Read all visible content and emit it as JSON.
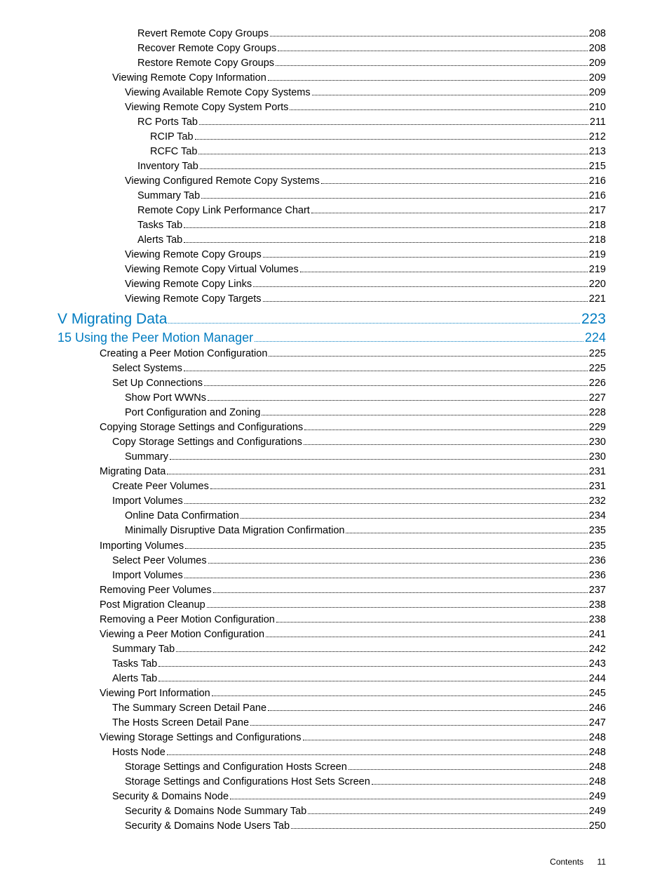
{
  "toc": [
    {
      "level": "d",
      "text": "Revert Remote Copy Groups",
      "page": "208"
    },
    {
      "level": "d",
      "text": "Recover Remote Copy Groups",
      "page": "208"
    },
    {
      "level": "d",
      "text": "Restore Remote Copy Groups",
      "page": "209"
    },
    {
      "level": "b",
      "text": "Viewing Remote Copy Information",
      "page": "209"
    },
    {
      "level": "c",
      "text": "Viewing Available Remote Copy Systems",
      "page": "209"
    },
    {
      "level": "c",
      "text": "Viewing Remote Copy System Ports",
      "page": "210"
    },
    {
      "level": "d",
      "text": "RC Ports Tab",
      "page": "211"
    },
    {
      "level": "e",
      "text": "RCIP Tab",
      "page": "212"
    },
    {
      "level": "e",
      "text": "RCFC Tab",
      "page": "213"
    },
    {
      "level": "d",
      "text": "Inventory Tab",
      "page": "215"
    },
    {
      "level": "c",
      "text": "Viewing Configured Remote Copy Systems",
      "page": "216"
    },
    {
      "level": "d",
      "text": "Summary Tab",
      "page": "216"
    },
    {
      "level": "d",
      "text": "Remote Copy Link Performance Chart",
      "page": "217"
    },
    {
      "level": "d",
      "text": "Tasks Tab",
      "page": "218"
    },
    {
      "level": "d",
      "text": "Alerts Tab",
      "page": "218"
    },
    {
      "level": "c",
      "text": "Viewing Remote Copy Groups",
      "page": "219"
    },
    {
      "level": "c",
      "text": "Viewing Remote Copy Virtual Volumes",
      "page": "219"
    },
    {
      "level": "c",
      "text": "Viewing Remote Copy Links",
      "page": "220"
    },
    {
      "level": "c",
      "text": "Viewing Remote Copy Targets",
      "page": "221"
    },
    {
      "level": "chapter",
      "text": "V Migrating Data",
      "page": "223"
    },
    {
      "level": "section",
      "text": "15 Using the Peer Motion Manager",
      "page": "224"
    },
    {
      "level": "a",
      "text": "Creating a Peer Motion Configuration",
      "page": "225"
    },
    {
      "level": "b",
      "text": "Select Systems",
      "page": "225"
    },
    {
      "level": "b",
      "text": "Set Up Connections",
      "page": "226"
    },
    {
      "level": "c",
      "text": "Show Port WWNs",
      "page": "227"
    },
    {
      "level": "c",
      "text": "Port Configuration and Zoning",
      "page": "228"
    },
    {
      "level": "a",
      "text": "Copying Storage Settings and Configurations",
      "page": "229"
    },
    {
      "level": "b",
      "text": "Copy Storage Settings and Configurations",
      "page": "230"
    },
    {
      "level": "c",
      "text": "Summary",
      "page": "230"
    },
    {
      "level": "a",
      "text": "Migrating Data ",
      "page": "231"
    },
    {
      "level": "b",
      "text": "Create Peer Volumes",
      "page": "231"
    },
    {
      "level": "b",
      "text": "Import Volumes",
      "page": "232"
    },
    {
      "level": "c",
      "text": "Online Data Confirmation",
      "page": "234"
    },
    {
      "level": "c",
      "text": "Minimally Disruptive Data Migration Confirmation",
      "page": "235"
    },
    {
      "level": "a",
      "text": "Importing Volumes",
      "page": "235"
    },
    {
      "level": "b",
      "text": "Select Peer Volumes",
      "page": "236"
    },
    {
      "level": "b",
      "text": "Import Volumes",
      "page": "236"
    },
    {
      "level": "a",
      "text": "Removing Peer Volumes ",
      "page": "237"
    },
    {
      "level": "a",
      "text": "Post Migration Cleanup ",
      "page": "238"
    },
    {
      "level": "a",
      "text": "Removing a Peer Motion Configuration ",
      "page": "238"
    },
    {
      "level": "a",
      "text": "Viewing a Peer Motion Configuration",
      "page": "241"
    },
    {
      "level": "b",
      "text": "Summary Tab",
      "page": "242"
    },
    {
      "level": "b",
      "text": "Tasks Tab",
      "page": "243"
    },
    {
      "level": "b",
      "text": "Alerts Tab",
      "page": "244"
    },
    {
      "level": "a",
      "text": "Viewing Port Information",
      "page": "245"
    },
    {
      "level": "b",
      "text": "The Summary Screen Detail Pane",
      "page": "246"
    },
    {
      "level": "b",
      "text": "The Hosts Screen Detail Pane",
      "page": "247"
    },
    {
      "level": "a",
      "text": "Viewing Storage Settings and Configurations",
      "page": "248"
    },
    {
      "level": "b",
      "text": "Hosts Node",
      "page": "248"
    },
    {
      "level": "c",
      "text": "Storage Settings and Configuration Hosts Screen",
      "page": "248"
    },
    {
      "level": "c",
      "text": "Storage Settings and Configurations Host Sets Screen",
      "page": "248"
    },
    {
      "level": "b",
      "text": "Security & Domains Node",
      "page": "249"
    },
    {
      "level": "c",
      "text": "Security & Domains Node Summary Tab",
      "page": "249"
    },
    {
      "level": "c",
      "text": "Security & Domains Node Users Tab",
      "page": "250"
    }
  ],
  "footer": {
    "label": "Contents",
    "page": "11"
  }
}
